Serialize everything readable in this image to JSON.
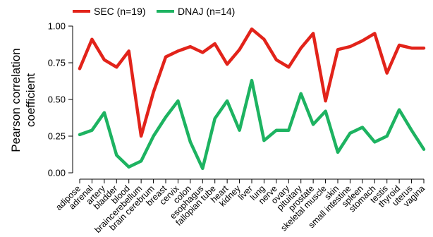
{
  "chart_data": {
    "type": "line",
    "categories": [
      "adipose",
      "adrenal",
      "artery",
      "bladder",
      "blood",
      "braincerebellum",
      "brain cerebrum",
      "breast",
      "cervix",
      "colon",
      "esophagus",
      "fallopian tube",
      "heart",
      "kidney",
      "liver",
      "lung",
      "nerve",
      "ovary",
      "pituitary",
      "prostate",
      "skeletal muscle",
      "skin",
      "small intestine",
      "spleen",
      "stomach",
      "testis",
      "thyroid",
      "uterus",
      "vagina"
    ],
    "series": [
      {
        "name": "SEC (n=19)",
        "color": "#e2231a",
        "values": [
          0.71,
          0.91,
          0.77,
          0.72,
          0.83,
          0.25,
          0.55,
          0.79,
          0.83,
          0.86,
          0.82,
          0.88,
          0.74,
          0.84,
          0.98,
          0.91,
          0.77,
          0.72,
          0.85,
          0.95,
          0.49,
          0.84,
          0.86,
          0.9,
          0.95,
          0.68,
          0.87,
          0.85,
          0.85
        ]
      },
      {
        "name": "DNAJ (n=14)",
        "color": "#1db361",
        "values": [
          0.26,
          0.29,
          0.41,
          0.12,
          0.04,
          0.08,
          0.25,
          0.38,
          0.49,
          0.21,
          0.03,
          0.37,
          0.49,
          0.29,
          0.63,
          0.22,
          0.29,
          0.29,
          0.54,
          0.33,
          0.42,
          0.14,
          0.27,
          0.31,
          0.21,
          0.25,
          0.43,
          0.29,
          0.16
        ]
      }
    ],
    "ylabel": "Pearson correlation coefficient",
    "ylabel_lines": [
      "Pearson correlation",
      "coefficient"
    ],
    "xlabel": "",
    "ylim": [
      0,
      1.05
    ],
    "yticks": [
      0,
      0.25,
      0.5,
      0.75,
      1.0
    ],
    "ytick_labels": [
      "0.00",
      "0.25",
      "0.50",
      "0.75",
      "1.00"
    ],
    "grid": false,
    "legend_position": "top-left"
  }
}
